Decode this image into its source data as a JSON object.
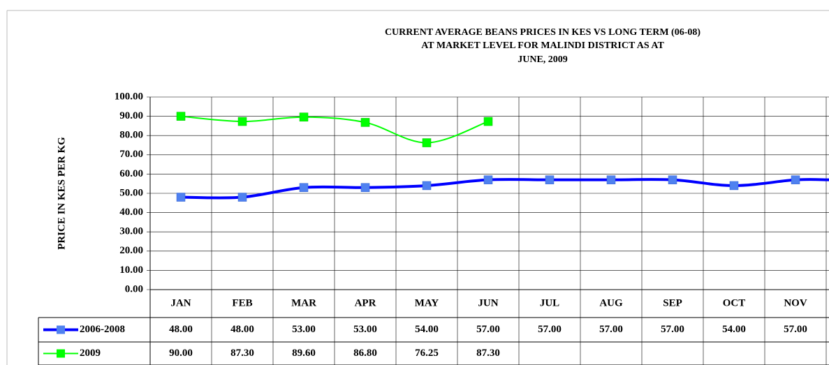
{
  "chart_data": {
    "type": "line",
    "title": [
      "CURRENT AVERAGE BEANS PRICES IN KES VS LONG TERM (06-08)",
      "AT MARKET LEVEL FOR MALINDI DISTRICT AS AT",
      "JUNE, 2009"
    ],
    "y_label": "PRICE IN KES PER KG",
    "categories": [
      "JAN",
      "FEB",
      "MAR",
      "APR",
      "MAY",
      "JUN",
      "JUL",
      "AUG",
      "SEP",
      "OCT",
      "NOV"
    ],
    "series": [
      {
        "name": "2006-2008",
        "color": "#0000ff",
        "marker_color": "#4f81f0",
        "values": [
          48,
          48,
          53,
          53,
          54,
          57,
          57,
          57,
          57,
          54,
          57
        ],
        "value_labels": [
          "48.00",
          "48.00",
          "53.00",
          "53.00",
          "54.00",
          "57.00",
          "57.00",
          "57.00",
          "57.00",
          "54.00",
          "57.00"
        ]
      },
      {
        "name": "2009",
        "color": "#00ff00",
        "marker_color": "#00ff00",
        "values": [
          90,
          87.3,
          89.6,
          86.8,
          76.25,
          87.3,
          null,
          null,
          null,
          null,
          null
        ],
        "value_labels": [
          "90.00",
          "87.30",
          "89.60",
          "86.80",
          "76.25",
          "87.30",
          null,
          null,
          null,
          null,
          null
        ]
      }
    ],
    "ylim": [
      0,
      100
    ],
    "yticks": [
      {
        "value": 0,
        "label": "0.00"
      },
      {
        "value": 10,
        "label": "10.00"
      },
      {
        "value": 20,
        "label": "20.00"
      },
      {
        "value": 30,
        "label": "30.00"
      },
      {
        "value": 40,
        "label": "40.00"
      },
      {
        "value": 50,
        "label": "50.00"
      },
      {
        "value": 60,
        "label": "60.00"
      },
      {
        "value": 70,
        "label": "70.00"
      },
      {
        "value": 80,
        "label": "80.00"
      },
      {
        "value": 90,
        "label": "90.00"
      },
      {
        "value": 100,
        "label": "100.00"
      }
    ],
    "grid": true
  }
}
